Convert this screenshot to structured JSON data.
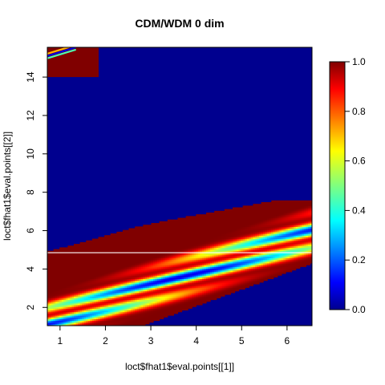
{
  "chart_data": {
    "type": "heatmap",
    "title": "CDM/WDM 0 dim",
    "xlabel": "loct$fhat1$eval.points[[1]]",
    "ylabel": "loct$fhat1$eval.points[[2]]",
    "xlim": [
      0.72,
      6.55
    ],
    "ylim": [
      1.05,
      15.55
    ],
    "x_ticks": [
      1,
      2,
      3,
      4,
      5,
      6
    ],
    "y_ticks": [
      2,
      4,
      6,
      8,
      10,
      12,
      14
    ],
    "zlim": [
      0,
      1
    ],
    "colorbar_ticks": [
      0.0,
      0.2,
      0.4,
      0.6,
      0.8,
      1.0
    ],
    "colorbar_tick_labels": [
      "0.0",
      "0.2",
      "0.4",
      "0.6",
      "0.8",
      "1.0"
    ],
    "colormap": "jet",
    "colors": {
      "low": "#00008f",
      "high": "#800000"
    },
    "grid": false,
    "horizontal_line_y": 4.85,
    "regions": [
      {
        "name": "upper-band-edge",
        "x": [
          0.72,
          1.5,
          2.7,
          3.3,
          5.8,
          6.55
        ],
        "y": [
          4.9,
          5.4,
          6.2,
          6.5,
          7.6,
          7.6
        ]
      },
      {
        "name": "lower-band-edge",
        "x": [
          0.72,
          2.8,
          6.55
        ],
        "y": [
          1.05,
          1.05,
          4.3
        ]
      },
      {
        "name": "top-left-block",
        "x": [
          0.72,
          1.85
        ],
        "y": [
          14.0,
          15.55
        ],
        "value": 1.0
      }
    ]
  }
}
